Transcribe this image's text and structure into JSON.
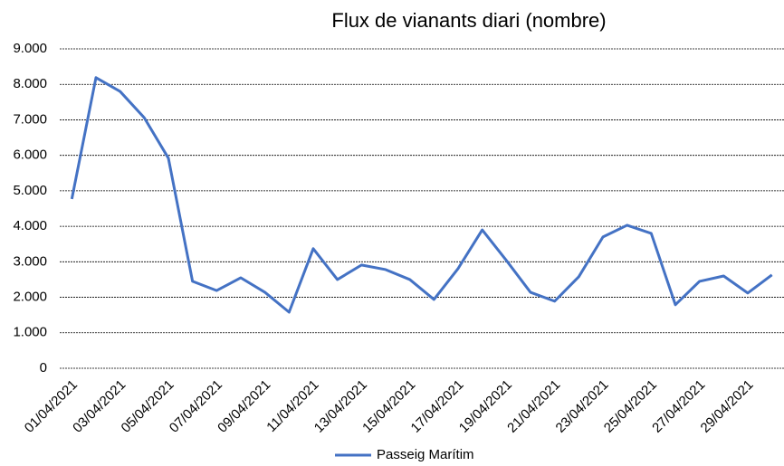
{
  "chart_data": {
    "type": "line",
    "title": "Flux de vianants diari (nombre)",
    "categories": [
      "01/04/2021",
      null,
      "03/04/2021",
      null,
      "05/04/2021",
      null,
      "07/04/2021",
      null,
      "09/04/2021",
      null,
      "11/04/2021",
      null,
      "13/04/2021",
      null,
      "15/04/2021",
      null,
      "17/04/2021",
      null,
      "19/04/2021",
      null,
      "21/04/2021",
      null,
      "23/04/2021",
      null,
      "25/04/2021",
      null,
      "27/04/2021",
      null,
      "29/04/2021",
      null
    ],
    "series": [
      {
        "name": "Passeig Marítim",
        "color": "#4472c4",
        "values": [
          4770,
          8190,
          7800,
          7060,
          5920,
          2450,
          2190,
          2550,
          2140,
          1580,
          3370,
          2500,
          2910,
          2780,
          2500,
          1940,
          2810,
          3900,
          3040,
          2140,
          1890,
          2580,
          3700,
          4030,
          3800,
          1790,
          2450,
          2600,
          2120,
          2630
        ]
      }
    ],
    "ylim": [
      0,
      9000
    ],
    "yticks": [
      0,
      {
        "value": 1000,
        "label": "1.000"
      },
      {
        "value": 2000,
        "label": "2.000"
      },
      {
        "value": 3000,
        "label": "3.000"
      },
      {
        "value": 4000,
        "label": "4.000"
      },
      {
        "value": 5000,
        "label": "5.000"
      },
      {
        "value": 6000,
        "label": "6.000"
      },
      {
        "value": 7000,
        "label": "7.000"
      },
      {
        "value": 8000,
        "label": "8.000"
      },
      {
        "value": 9000,
        "label": "9.000"
      }
    ],
    "grid": true,
    "legend": "bottom"
  }
}
